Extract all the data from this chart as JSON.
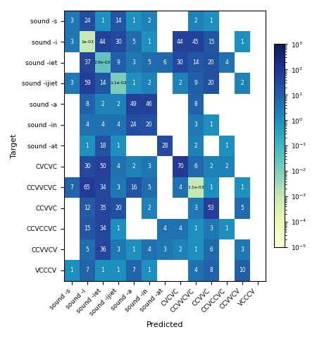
{
  "row_labels": [
    "sound -s",
    "sound -i",
    "sound -iet",
    "sound -ijiet",
    "sound -a",
    "sound -in",
    "sound -at",
    "CVCVC",
    "CCVVCVC",
    "CCVVC",
    "CCVCCVC",
    "CCVVCV",
    "VCCCV"
  ],
  "col_labels": [
    "sound -s",
    "sound -i",
    "sound -iet",
    "sound -ijiet",
    "sound -a",
    "sound -in",
    "sound -at",
    "CVCVC",
    "CCVVCVC",
    "CCVVC",
    "CCVCCVC",
    "CCVVCV",
    "VCCCV"
  ],
  "matrix": [
    [
      3,
      24,
      1,
      14,
      1,
      2,
      0,
      0,
      2,
      1,
      0,
      0,
      0
    ],
    [
      3,
      0,
      44,
      30,
      5,
      1,
      0,
      44,
      45,
      15,
      0,
      1,
      0
    ],
    [
      0,
      37,
      0,
      9,
      3,
      5,
      6,
      30,
      14,
      20,
      4,
      0,
      0
    ],
    [
      3,
      59,
      14,
      0,
      1,
      2,
      0,
      2,
      9,
      20,
      0,
      2,
      0
    ],
    [
      0,
      8,
      2,
      2,
      49,
      46,
      0,
      0,
      8,
      0,
      0,
      0,
      0
    ],
    [
      0,
      4,
      4,
      4,
      24,
      20,
      0,
      0,
      3,
      1,
      0,
      0,
      0
    ],
    [
      0,
      1,
      18,
      1,
      0,
      0,
      28,
      0,
      2,
      0,
      1,
      0,
      0
    ],
    [
      0,
      30,
      50,
      4,
      2,
      3,
      0,
      70,
      6,
      2,
      2,
      0,
      0
    ],
    [
      7,
      65,
      34,
      3,
      16,
      5,
      0,
      4,
      0,
      1,
      0,
      1,
      0
    ],
    [
      0,
      12,
      35,
      20,
      0,
      2,
      0,
      0,
      3,
      53,
      0,
      5,
      0
    ],
    [
      0,
      15,
      34,
      1,
      0,
      0,
      4,
      4,
      1,
      3,
      1,
      0,
      0
    ],
    [
      0,
      5,
      36,
      3,
      1,
      4,
      3,
      2,
      1,
      6,
      0,
      3,
      0
    ],
    [
      1,
      7,
      1,
      1,
      7,
      1,
      0,
      0,
      4,
      8,
      0,
      10,
      0
    ]
  ],
  "special_cells": [
    [
      1,
      1,
      0.001
    ],
    [
      2,
      2,
      0.028
    ],
    [
      3,
      3,
      0.011
    ],
    [
      8,
      8,
      0.0011
    ]
  ],
  "special_texts": [
    [
      1,
      1,
      "1e-03"
    ],
    [
      2,
      2,
      "2.8e-02"
    ],
    [
      3,
      3,
      "1.1e-02"
    ],
    [
      8,
      8,
      "1.1e-03"
    ]
  ],
  "xlabel": "Predicted",
  "ylabel": "Target",
  "cmap": "YlGnBu",
  "vmin": 1e-05,
  "vmax": 1000,
  "figsize": [
    4.5,
    4.8
  ],
  "dpi": 100
}
